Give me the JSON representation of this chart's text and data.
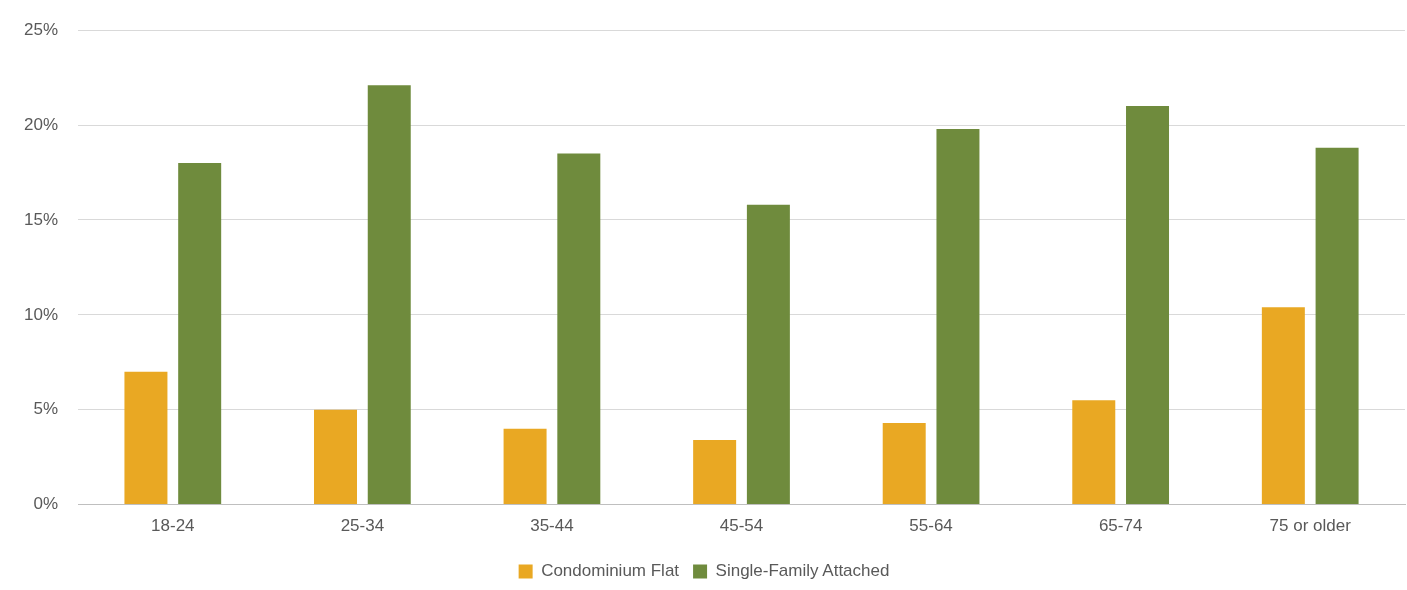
{
  "chart_data": {
    "type": "bar",
    "categories": [
      "18-24",
      "25-34",
      "35-44",
      "45-54",
      "55-64",
      "65-74",
      "75 or older"
    ],
    "series": [
      {
        "name": "Condominium Flat",
        "color": "#e9a823",
        "values": [
          7.0,
          5.0,
          4.0,
          3.4,
          4.3,
          5.5,
          10.4
        ]
      },
      {
        "name": "Single-Family Attached",
        "color": "#6f8b3d",
        "values": [
          18.0,
          22.1,
          18.5,
          15.8,
          19.8,
          21.0,
          18.8
        ]
      }
    ],
    "ylim": [
      0,
      25
    ],
    "yticks": [
      {
        "value": 0,
        "label": "0%"
      },
      {
        "value": 5,
        "label": "5%"
      },
      {
        "value": 10,
        "label": "10%"
      },
      {
        "value": 15,
        "label": "15%"
      },
      {
        "value": 20,
        "label": "20%"
      },
      {
        "value": 25,
        "label": "25%"
      }
    ],
    "grid": "y",
    "legend": "bottom"
  }
}
